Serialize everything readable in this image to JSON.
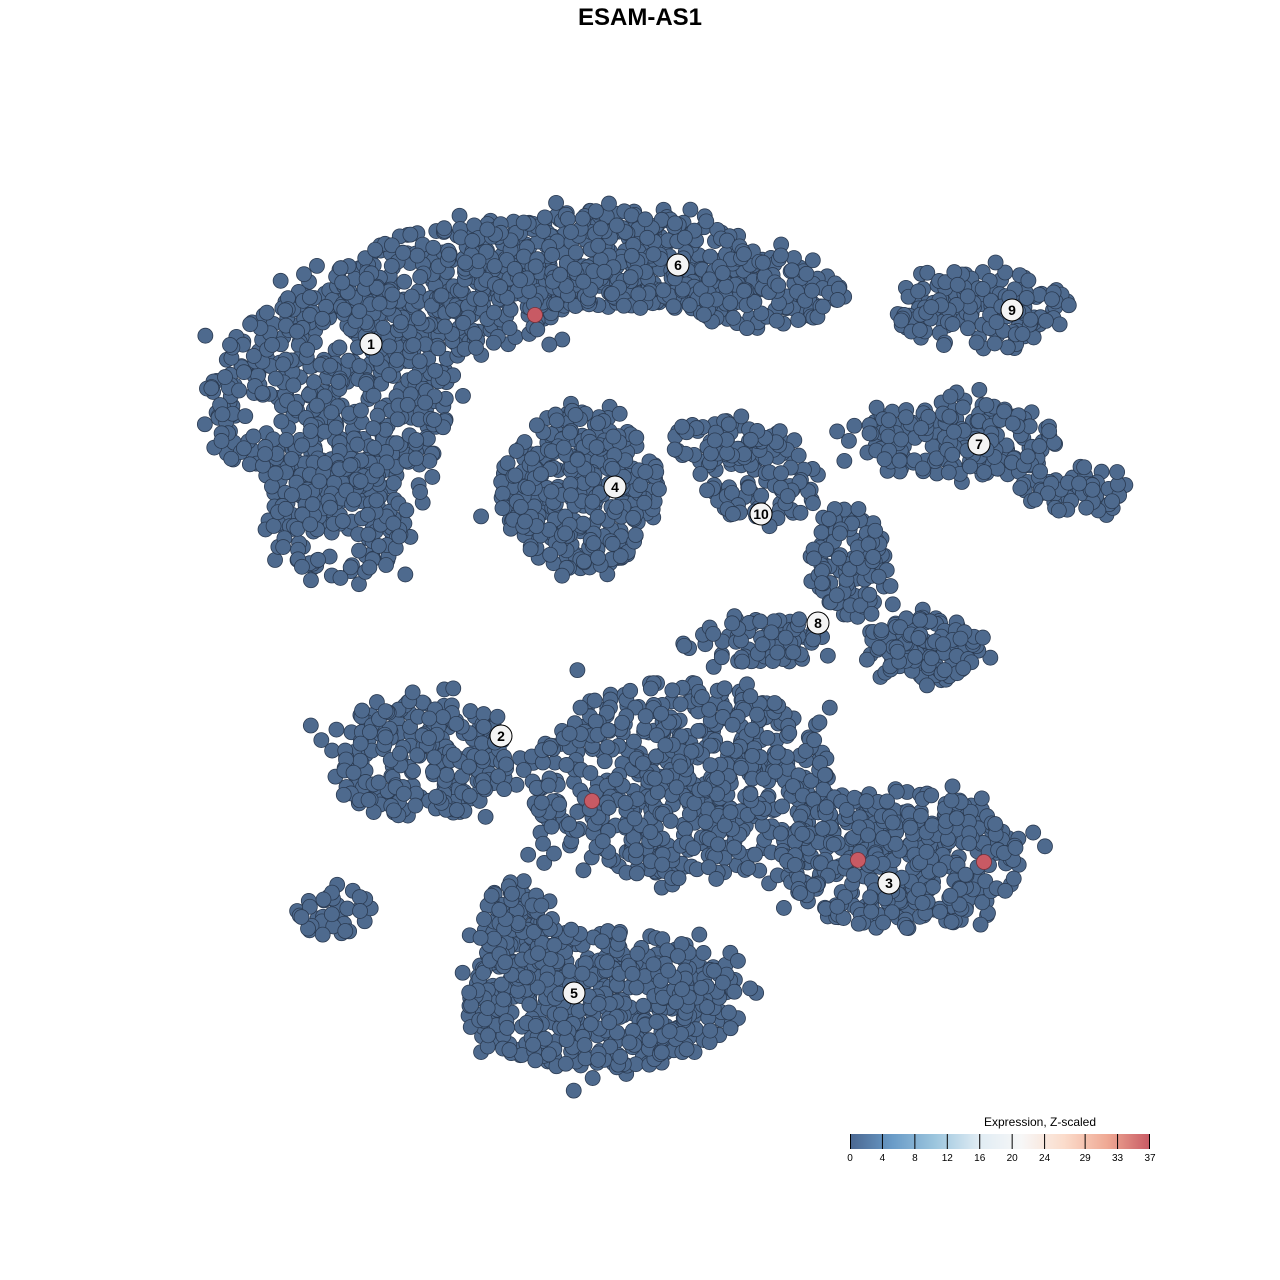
{
  "chart_data": {
    "type": "scatter",
    "title": "ESAM-AS1",
    "xlabel": "",
    "ylabel": "",
    "axes_visible": false,
    "grid": false,
    "point_color": "#4e6a8e",
    "point_stroke": "#2b3b52",
    "highlight_color": "#c85a64",
    "clusters": [
      {
        "label": "1",
        "label_pos": [
          -26.9,
          29.6
        ],
        "blobs": [
          [
            -31,
            24,
            12,
            11,
            520
          ],
          [
            -19,
            35,
            12,
            6,
            320
          ],
          [
            -30,
            12,
            7,
            6,
            160
          ]
        ]
      },
      {
        "label": "2",
        "label_pos": [
          -13.9,
          -9.6
        ],
        "blobs": [
          [
            -22,
            -12,
            9,
            6,
            260
          ],
          [
            -31,
            -27,
            4,
            2.5,
            35
          ]
        ]
      },
      {
        "label": "3",
        "label_pos": [
          24.9,
          -24.3
        ],
        "blobs": [
          [
            4,
            -14,
            15,
            10,
            620
          ],
          [
            26,
            -22,
            12,
            7,
            420
          ]
        ]
      },
      {
        "label": "4",
        "label_pos": [
          -2.5,
          15.3
        ],
        "blobs": [
          [
            -6,
            15,
            8,
            8,
            360
          ]
        ]
      },
      {
        "label": "5",
        "label_pos": [
          -6.6,
          -35.3
        ],
        "blobs": [
          [
            -4,
            -36,
            14,
            7,
            520
          ],
          [
            -12,
            -29,
            4,
            5,
            100
          ]
        ]
      },
      {
        "label": "6",
        "label_pos": [
          3.8,
          37.5
        ],
        "blobs": [
          [
            -4,
            38,
            15,
            5,
            420
          ],
          [
            12,
            35,
            8,
            4,
            160
          ]
        ]
      },
      {
        "label": "7",
        "label_pos": [
          33.9,
          19.6
        ],
        "blobs": [
          [
            32,
            20,
            10,
            4,
            210
          ],
          [
            43,
            15,
            5,
            2.5,
            60
          ]
        ]
      },
      {
        "label": "8",
        "label_pos": [
          17.8,
          1.7
        ],
        "blobs": [
          [
            21,
            8,
            4,
            6,
            110
          ],
          [
            28,
            -1,
            6,
            3.5,
            130
          ],
          [
            12,
            0,
            6,
            2.5,
            80
          ]
        ]
      },
      {
        "label": "9",
        "label_pos": [
          37.2,
          33.0
        ],
        "blobs": [
          [
            34,
            33,
            9,
            4,
            160
          ]
        ]
      },
      {
        "label": "10",
        "label_pos": [
          12.1,
          12.6
        ],
        "blobs": [
          [
            12,
            16,
            6,
            5,
            100
          ],
          [
            8,
            20,
            5,
            2.5,
            60
          ]
        ]
      }
    ],
    "highlighted_points": [
      {
        "x": -10.5,
        "y": 32.5,
        "value": 37
      },
      {
        "x": -4.8,
        "y": -16.1,
        "value": 37
      },
      {
        "x": 21.8,
        "y": -22.0,
        "value": 37
      },
      {
        "x": 34.4,
        "y": -22.2,
        "value": 37
      }
    ],
    "base_value": 0
  },
  "legend": {
    "title": "Expression, Z-scaled",
    "ticks": [
      "0",
      "4",
      "8",
      "12",
      "16",
      "20",
      "24",
      "29",
      "33",
      "37"
    ],
    "tick_values": [
      0,
      4,
      8,
      12,
      16,
      20,
      24,
      29,
      33,
      37
    ],
    "range": [
      0,
      37
    ],
    "colors": [
      "#4a6791",
      "#6a9cc8",
      "#9dc6de",
      "#e0ecf4",
      "#f7f7f7",
      "#fbdccb",
      "#efa994",
      "#c85a64"
    ]
  }
}
